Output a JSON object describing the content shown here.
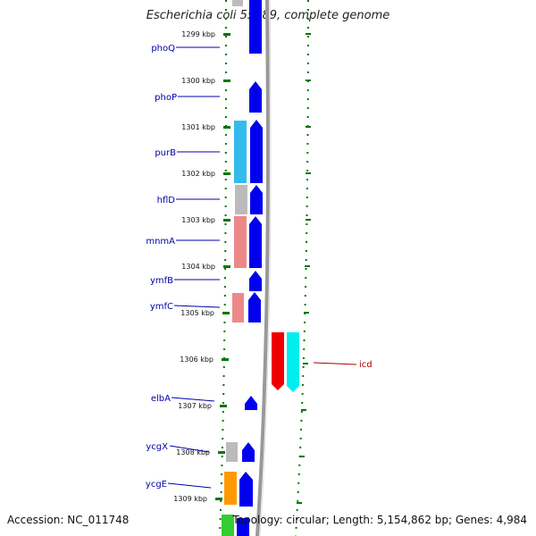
{
  "header": {
    "title": "Escherichia coli 55989, complete genome"
  },
  "footer": {
    "accession": "Accession: NC_011748",
    "summary": "Topology: circular; Length: 5,154,862 bp; Genes: 4,984"
  },
  "scale": {
    "ticks": [
      "1299 kbp",
      "1300 kbp",
      "1301 kbp",
      "1302 kbp",
      "1303 kbp",
      "1304 kbp",
      "1305 kbp",
      "1306 kbp",
      "1307 kbp",
      "1308 kbp",
      "1309 kbp"
    ]
  },
  "genes": [
    {
      "name": "phoQ",
      "strand": "left"
    },
    {
      "name": "phoP",
      "strand": "left"
    },
    {
      "name": "purB",
      "strand": "left"
    },
    {
      "name": "hflD",
      "strand": "left"
    },
    {
      "name": "mnmA",
      "strand": "left"
    },
    {
      "name": "ymfB",
      "strand": "left"
    },
    {
      "name": "ymfC",
      "strand": "left"
    },
    {
      "name": "icd",
      "strand": "right"
    },
    {
      "name": "elbA",
      "strand": "left"
    },
    {
      "name": "ycgX",
      "strand": "left"
    },
    {
      "name": "ycgE",
      "strand": "left"
    }
  ],
  "colors": {
    "cds": "#0000ee",
    "cog_cyan": "#33bbee",
    "cog_gray": "#bbbbbb",
    "cog_salmon": "#ee8888",
    "cog_orange": "#ff9900",
    "cog_green": "#33cc33",
    "icd_red": "#ee0000",
    "icd_cyan": "#00eeee",
    "dots": "#007700",
    "backbone": "#999999"
  }
}
